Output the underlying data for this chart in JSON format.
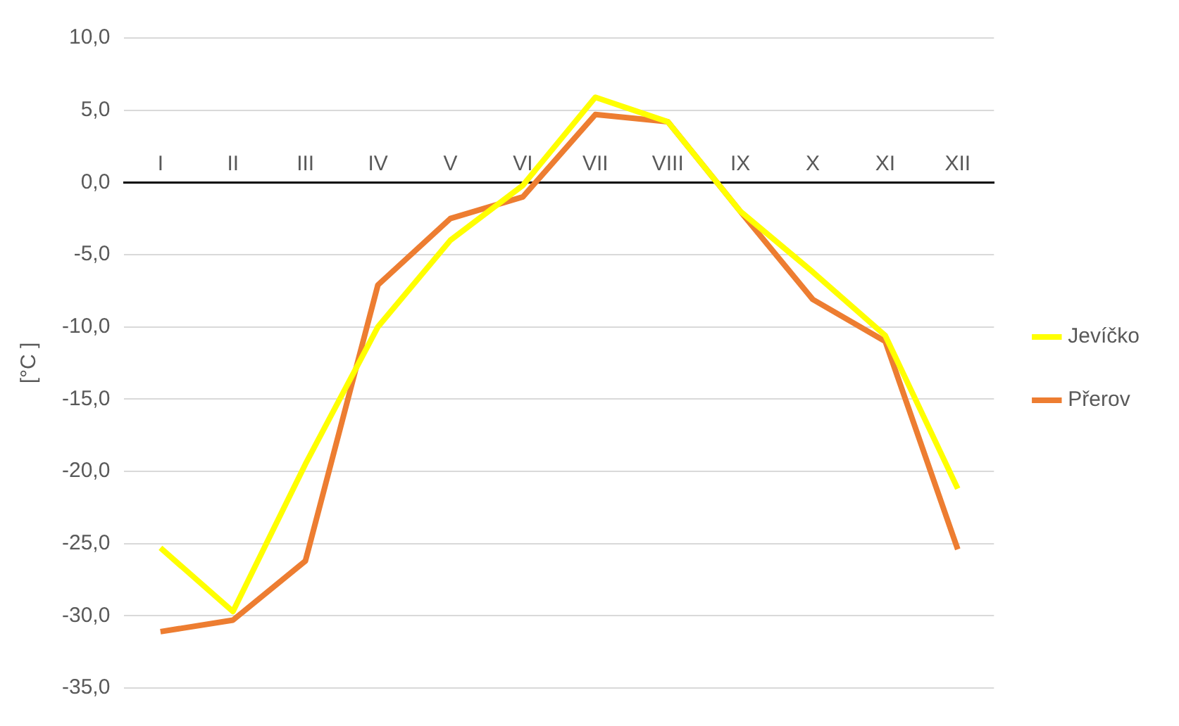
{
  "chart_data": {
    "type": "line",
    "ylabel": "[°C ]",
    "categories": [
      "I",
      "II",
      "III",
      "IV",
      "V",
      "VI",
      "VII",
      "VIII",
      "IX",
      "X",
      "XI",
      "XII"
    ],
    "series": [
      {
        "name": "Jevíčko",
        "color": "#ffff00",
        "values": [
          -25.3,
          -29.7,
          -19.5,
          -10.0,
          -4.0,
          -0.2,
          5.9,
          4.2,
          -2.0,
          -6.2,
          -10.6,
          -21.2
        ]
      },
      {
        "name": "Přerov",
        "color": "#ed7d31",
        "values": [
          -31.1,
          -30.3,
          -26.2,
          -7.1,
          -2.5,
          -1.0,
          4.7,
          4.2,
          -2.0,
          -8.1,
          -11.0,
          -25.4
        ]
      }
    ],
    "ylim": [
      -35,
      10
    ],
    "yticks": [
      {
        "value": -35,
        "label": "-35,0"
      },
      {
        "value": -30,
        "label": "-30,0"
      },
      {
        "value": -25,
        "label": "-25,0"
      },
      {
        "value": -20,
        "label": "-20,0"
      },
      {
        "value": -15,
        "label": "-15,0"
      },
      {
        "value": -10,
        "label": "-10,0"
      },
      {
        "value": -5,
        "label": "-5,0"
      },
      {
        "value": 0,
        "label": "0,0"
      },
      {
        "value": 5,
        "label": "5,0"
      },
      {
        "value": 10,
        "label": "10,0"
      }
    ],
    "grid": "y",
    "legend": "right",
    "marker": "none",
    "line_style": "solid"
  }
}
